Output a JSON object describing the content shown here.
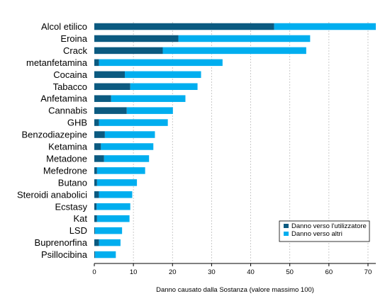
{
  "chart_data": {
    "type": "bar",
    "orientation": "horizontal",
    "stacked": true,
    "categories": [
      "Alcol etilico",
      "Eroina",
      "Crack",
      "metanfetamina",
      "Cocaina",
      "Tabacco",
      "Anfetamina",
      "Cannabis",
      "GHB",
      "Benzodiazepine",
      "Ketamina",
      "Metadone",
      "Mefedrone",
      "Butano",
      "Steroidi anabolici",
      "Ecstasy",
      "Kat",
      "LSD",
      "Buprenorfina",
      "Psillocibina"
    ],
    "series": [
      {
        "name": "Danno verso l'utilizzatore",
        "color": "#0b5a80",
        "values": [
          46,
          21.5,
          17.5,
          1.2,
          7.8,
          9.2,
          4.3,
          8.3,
          1.2,
          2.7,
          1.7,
          2.5,
          0.7,
          0.7,
          1.2,
          0.6,
          0.7,
          0.2,
          1.2,
          0.2
        ]
      },
      {
        "name": "Danno verso altri",
        "color": "#00aeef",
        "values": [
          26,
          33.7,
          36.7,
          31.6,
          19.5,
          17.2,
          19,
          11.8,
          17.6,
          12.8,
          13.4,
          11.5,
          12.3,
          10.2,
          8.5,
          8.6,
          8.3,
          6.9,
          5.5,
          5.3
        ]
      }
    ],
    "xlabel": "Danno causato dalla Sostanza (valore massimo 100)",
    "ylabel": "",
    "xlim": [
      0,
      72
    ],
    "xticks": [
      0,
      10,
      20,
      30,
      40,
      50,
      60,
      70
    ],
    "grid": "vertical-dashed",
    "legend_position": "bottom-right"
  }
}
